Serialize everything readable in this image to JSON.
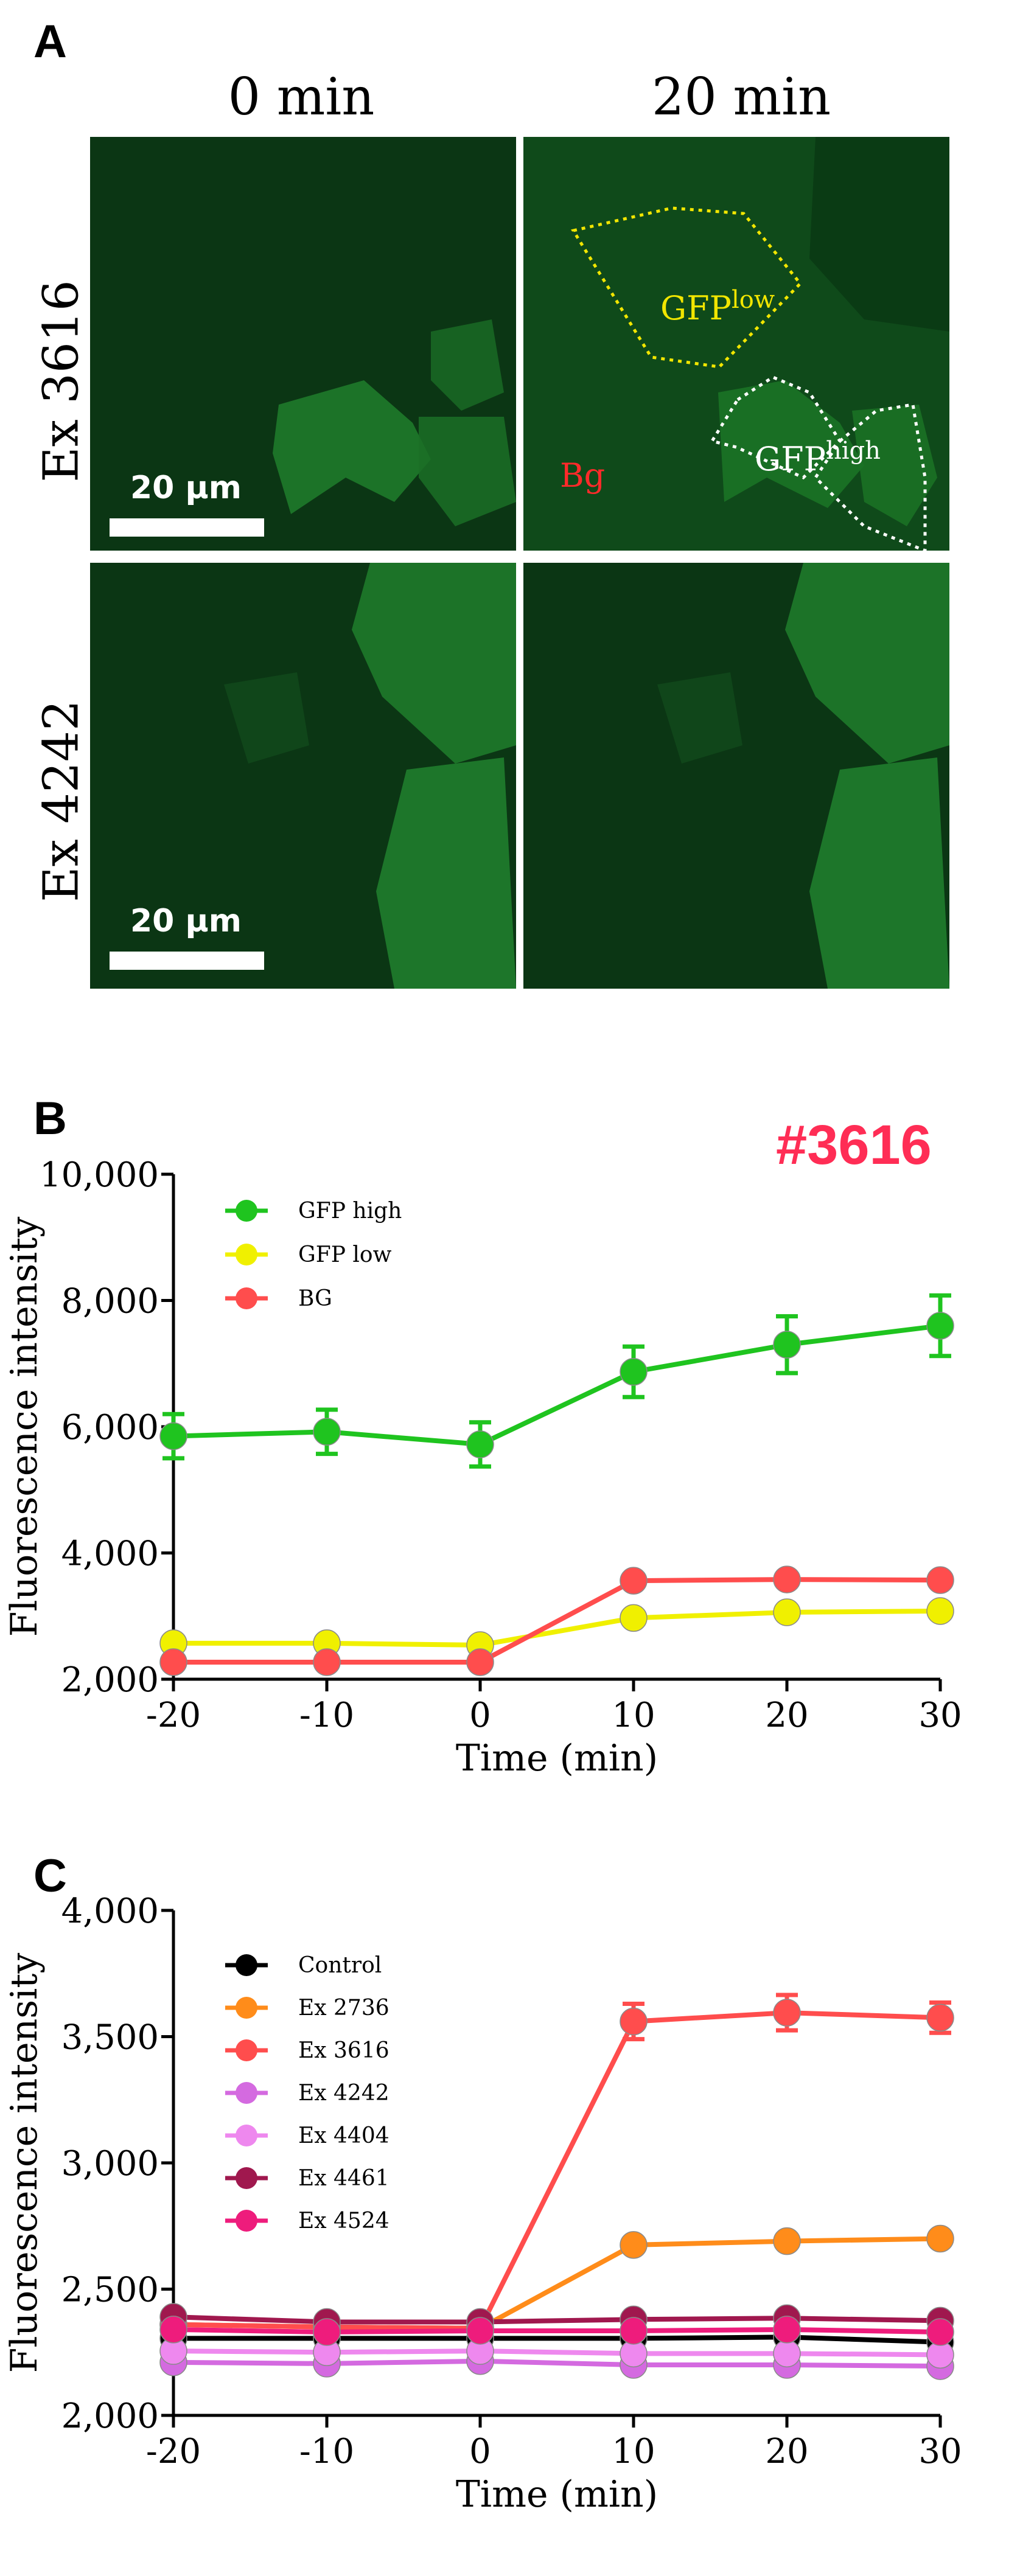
{
  "panels": {
    "a": {
      "letter": "A",
      "columns": [
        "0 min",
        "20 min"
      ],
      "rows": [
        "Ex 3616",
        "Ex 4242"
      ],
      "scale_bar_label": "20 μm",
      "roi": {
        "low_main": "GFP",
        "low_sup": "low",
        "high_main": "GFP",
        "high_sup": "high",
        "bg": "Bg"
      },
      "colors": {
        "low": "#f2e600",
        "high": "#ffffff",
        "bg": "#ff2a2a",
        "tissue": "#0f4a1a"
      }
    },
    "b": {
      "letter": "B",
      "tag": "#3616"
    },
    "c": {
      "letter": "C"
    }
  },
  "chart_data": [
    {
      "type": "line",
      "x": [
        -20,
        -10,
        0,
        10,
        20,
        30
      ],
      "xlabel": "Time (min)",
      "ylabel": "Fluorescence intensity",
      "xlim": [
        -20,
        30
      ],
      "ylim": [
        2000,
        10000
      ],
      "x_ticks": [
        "-20",
        "-10",
        "0",
        "10",
        "20",
        "30"
      ],
      "y_ticks": [
        "2,000",
        "4,000",
        "6,000",
        "8,000",
        "10,000"
      ],
      "y_tick_values": [
        2000,
        4000,
        6000,
        8000,
        10000
      ],
      "legend_placement": "top-left",
      "series": [
        {
          "name": "GFP high",
          "color": "#1fc41f",
          "values": [
            5850,
            5920,
            5720,
            6870,
            7300,
            7600
          ],
          "errors": [
            350,
            350,
            350,
            400,
            450,
            480
          ]
        },
        {
          "name": "GFP low",
          "color": "#f0f000",
          "values": [
            2570,
            2570,
            2540,
            2970,
            3060,
            3080
          ],
          "errors": [
            0,
            0,
            0,
            0,
            0,
            0
          ]
        },
        {
          "name": "BG",
          "color": "#ff4d4d",
          "values": [
            2270,
            2270,
            2270,
            3560,
            3580,
            3570
          ],
          "errors": [
            0,
            0,
            0,
            0,
            0,
            0
          ]
        }
      ]
    },
    {
      "type": "line",
      "x": [
        -20,
        -10,
        0,
        10,
        20,
        30
      ],
      "xlabel": "Time (min)",
      "ylabel": "Fluorescence intensity",
      "xlim": [
        -20,
        30
      ],
      "ylim": [
        2000,
        4000
      ],
      "x_ticks": [
        "-20",
        "-10",
        "0",
        "10",
        "20",
        "30"
      ],
      "y_ticks": [
        "2,000",
        "2,500",
        "3,000",
        "3,500",
        "4,000"
      ],
      "y_tick_values": [
        2000,
        2500,
        3000,
        3500,
        4000
      ],
      "legend_placement": "top-left",
      "series": [
        {
          "name": "Control",
          "color": "#000000",
          "values": [
            2305,
            2305,
            2305,
            2305,
            2310,
            2290
          ],
          "errors": [
            0,
            0,
            0,
            0,
            0,
            0
          ]
        },
        {
          "name": "Ex 2736",
          "color": "#ff8c1a",
          "values": [
            2360,
            2350,
            2345,
            2675,
            2690,
            2700
          ],
          "errors": [
            0,
            0,
            0,
            0,
            0,
            0
          ]
        },
        {
          "name": "Ex 3616",
          "color": "#ff4d4d",
          "values": [
            2360,
            2350,
            2345,
            3560,
            3595,
            3575
          ],
          "errors": [
            0,
            0,
            0,
            70,
            70,
            60
          ]
        },
        {
          "name": "Ex 4242",
          "color": "#d46ae0",
          "values": [
            2210,
            2205,
            2215,
            2200,
            2200,
            2195
          ],
          "errors": [
            0,
            0,
            0,
            0,
            0,
            0
          ]
        },
        {
          "name": "Ex 4404",
          "color": "#ee88ee",
          "values": [
            2255,
            2250,
            2255,
            2245,
            2245,
            2240
          ],
          "errors": [
            0,
            0,
            0,
            0,
            0,
            0
          ]
        },
        {
          "name": "Ex 4461",
          "color": "#a0184e",
          "values": [
            2390,
            2370,
            2370,
            2380,
            2385,
            2375
          ],
          "errors": [
            0,
            0,
            0,
            0,
            0,
            0
          ]
        },
        {
          "name": "Ex 4524",
          "color": "#ee1c7c",
          "values": [
            2340,
            2330,
            2335,
            2335,
            2340,
            2330
          ],
          "errors": [
            0,
            0,
            0,
            0,
            0,
            0
          ]
        }
      ]
    }
  ]
}
